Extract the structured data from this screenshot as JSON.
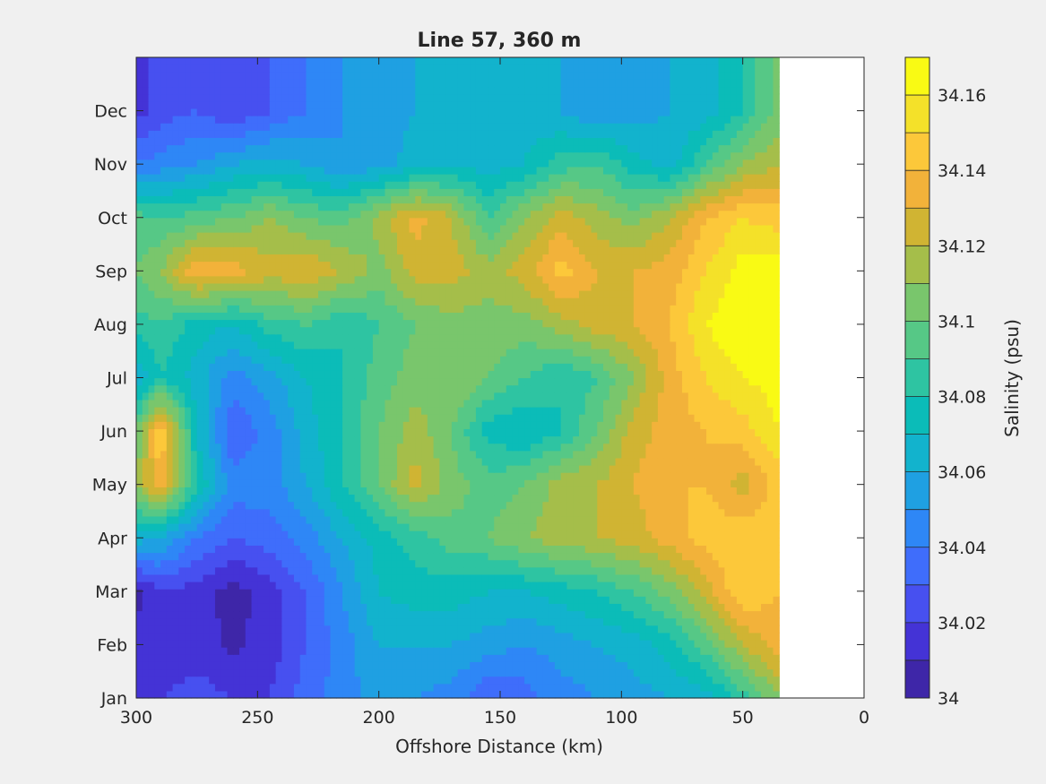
{
  "chart_data": {
    "type": "heatmap",
    "subtype": "filled-contour",
    "title": "Line 57, 360 m",
    "xlabel": "Offshore Distance (km)",
    "ylabel": "",
    "x_direction": "reversed",
    "xlim": [
      0,
      300
    ],
    "x_ticks": [
      300,
      250,
      200,
      150,
      100,
      50,
      0
    ],
    "y_tick_labels": [
      "Jan",
      "Feb",
      "Mar",
      "Apr",
      "May",
      "Jun",
      "Jul",
      "Aug",
      "Sep",
      "Oct",
      "Nov",
      "Dec"
    ],
    "ylim": [
      0,
      12
    ],
    "data_extent_x": [
      35,
      300
    ],
    "colorbar": {
      "label": "Salinity (psu)",
      "range": [
        34.0,
        34.17
      ],
      "levels": [
        34.0,
        34.01,
        34.02,
        34.03,
        34.04,
        34.05,
        34.06,
        34.07,
        34.08,
        34.09,
        34.1,
        34.11,
        34.12,
        34.13,
        34.14,
        34.15,
        34.16,
        34.17
      ],
      "tick_labels": [
        "34",
        "34.02",
        "34.04",
        "34.06",
        "34.08",
        "34.1",
        "34.12",
        "34.14",
        "34.16"
      ],
      "colors": [
        "#3e26a8",
        "#4433d6",
        "#4750f0",
        "#3f6dfb",
        "#2e87f6",
        "#1fa0e2",
        "#12b3cd",
        "#0bbcb8",
        "#2ec4a2",
        "#56c886",
        "#79c66c",
        "#a5be4a",
        "#d0b433",
        "#f2b23a",
        "#fcc83a",
        "#f4e129",
        "#f9fa14"
      ]
    },
    "grid": false,
    "x": [
      35,
      50,
      65,
      80,
      95,
      110,
      125,
      140,
      155,
      170,
      185,
      200,
      215,
      230,
      245,
      260,
      275,
      290,
      300
    ],
    "y": [
      "Jan",
      "Feb",
      "Mar",
      "Apr",
      "May",
      "Jun",
      "Jul",
      "Aug",
      "Sep",
      "Oct",
      "Nov",
      "Dec"
    ],
    "z": [
      [
        34.11,
        34.085,
        34.065,
        34.06,
        34.055,
        34.05,
        34.045,
        34.035,
        34.03,
        34.045,
        34.05,
        34.055,
        34.045,
        34.035,
        34.02,
        34.02,
        34.025,
        34.02,
        34.02
      ],
      [
        34.135,
        34.12,
        34.095,
        34.075,
        34.065,
        34.06,
        34.055,
        34.05,
        34.055,
        34.06,
        34.06,
        34.06,
        34.045,
        34.03,
        34.015,
        34.008,
        34.015,
        34.01,
        34.015
      ],
      [
        34.14,
        34.15,
        34.125,
        34.105,
        34.09,
        34.08,
        34.075,
        34.07,
        34.07,
        34.075,
        34.075,
        34.07,
        34.05,
        34.03,
        34.015,
        34.005,
        34.015,
        34.02,
        34.005
      ],
      [
        34.145,
        34.15,
        34.145,
        34.135,
        34.125,
        34.12,
        34.115,
        34.11,
        34.1,
        34.095,
        34.085,
        34.075,
        34.06,
        34.045,
        34.035,
        34.03,
        34.04,
        34.06,
        34.065
      ],
      [
        34.145,
        34.125,
        34.14,
        34.14,
        34.13,
        34.12,
        34.115,
        34.1,
        34.095,
        34.105,
        34.125,
        34.1,
        34.08,
        34.06,
        34.045,
        34.045,
        34.08,
        34.14,
        34.11
      ],
      [
        34.16,
        34.145,
        34.14,
        34.135,
        34.125,
        34.1,
        34.08,
        34.07,
        34.075,
        34.1,
        34.115,
        34.1,
        34.08,
        34.065,
        34.045,
        34.03,
        34.07,
        34.15,
        34.1
      ],
      [
        34.165,
        34.16,
        34.15,
        34.135,
        34.11,
        34.09,
        34.08,
        34.09,
        34.1,
        34.11,
        34.105,
        34.095,
        34.08,
        34.07,
        34.055,
        34.045,
        34.065,
        34.08,
        34.06
      ],
      [
        34.168,
        34.17,
        34.16,
        34.14,
        34.13,
        34.125,
        34.115,
        34.105,
        34.105,
        34.105,
        34.1,
        34.09,
        34.08,
        34.09,
        34.085,
        34.07,
        34.075,
        34.09,
        34.085
      ],
      [
        34.165,
        34.165,
        34.15,
        34.135,
        34.13,
        34.13,
        34.145,
        34.125,
        34.115,
        34.125,
        34.125,
        34.105,
        34.12,
        34.13,
        34.125,
        34.135,
        34.14,
        34.11,
        34.1
      ],
      [
        34.145,
        34.15,
        34.14,
        34.12,
        34.105,
        34.115,
        34.125,
        34.11,
        34.09,
        34.12,
        34.135,
        34.115,
        34.095,
        34.1,
        34.11,
        34.1,
        34.095,
        34.09,
        34.095
      ],
      [
        34.12,
        34.11,
        34.09,
        34.065,
        34.075,
        34.09,
        34.085,
        34.07,
        34.065,
        34.07,
        34.065,
        34.055,
        34.05,
        34.06,
        34.065,
        34.06,
        34.05,
        34.045,
        34.04
      ],
      [
        34.105,
        34.08,
        34.065,
        34.06,
        34.055,
        34.05,
        34.06,
        34.065,
        34.07,
        34.065,
        34.06,
        34.055,
        34.05,
        34.04,
        34.03,
        34.02,
        34.03,
        34.025,
        34.015
      ]
    ]
  }
}
